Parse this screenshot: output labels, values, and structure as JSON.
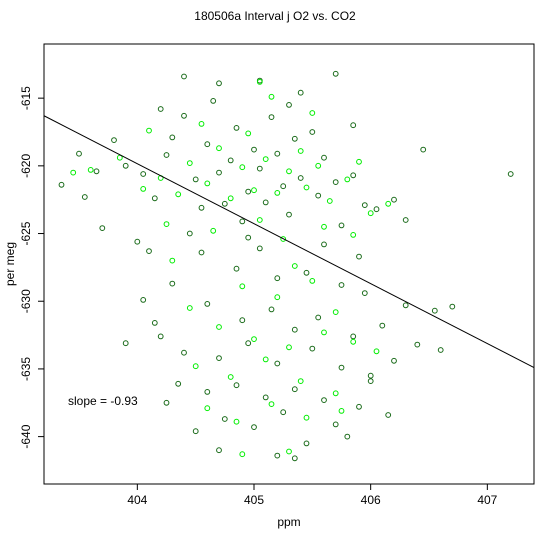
{
  "chart_data": {
    "type": "scatter",
    "title": "180506a   Interval j O2 vs. CO2",
    "xlabel": "ppm",
    "ylabel": "per meg",
    "xlim": [
      403.2,
      407.4
    ],
    "ylim": [
      -643.5,
      -611.0
    ],
    "xticks": [
      404,
      405,
      406,
      407
    ],
    "yticks": [
      -615,
      -620,
      -625,
      -630,
      -635,
      -640
    ],
    "grid": false,
    "legend": "none",
    "annotation": "slope =  -0.93",
    "colors": {
      "series_dark": "#1a6b1a",
      "series_bright": "#00ee00",
      "fit_line": "#000000"
    },
    "series": [
      {
        "marker": "open-circle",
        "color": "#1a6b1a",
        "points": [
          [
            403.35,
            -621.4
          ],
          [
            403.55,
            -622.3
          ],
          [
            403.7,
            -624.6
          ],
          [
            403.8,
            -618.1
          ],
          [
            403.9,
            -620.0
          ],
          [
            404.05,
            -620.6
          ],
          [
            404.15,
            -622.4
          ],
          [
            404.25,
            -619.2
          ],
          [
            404.3,
            -617.9
          ],
          [
            404.4,
            -616.3
          ],
          [
            404.5,
            -621.0
          ],
          [
            404.55,
            -623.1
          ],
          [
            404.6,
            -618.4
          ],
          [
            404.7,
            -620.5
          ],
          [
            404.75,
            -622.8
          ],
          [
            404.8,
            -619.6
          ],
          [
            404.85,
            -617.2
          ],
          [
            404.9,
            -624.1
          ],
          [
            404.95,
            -621.9
          ],
          [
            405.0,
            -618.8
          ],
          [
            405.05,
            -620.2
          ],
          [
            405.1,
            -622.7
          ],
          [
            405.15,
            -616.4
          ],
          [
            405.2,
            -619.1
          ],
          [
            405.25,
            -621.5
          ],
          [
            405.3,
            -623.6
          ],
          [
            405.35,
            -618.0
          ],
          [
            405.4,
            -620.9
          ],
          [
            405.5,
            -617.5
          ],
          [
            405.55,
            -622.2
          ],
          [
            405.6,
            -619.4
          ],
          [
            405.7,
            -621.2
          ],
          [
            405.75,
            -624.4
          ],
          [
            405.85,
            -620.7
          ],
          [
            405.95,
            -622.9
          ],
          [
            406.05,
            -623.2
          ],
          [
            406.2,
            -622.5
          ],
          [
            406.3,
            -624.0
          ],
          [
            406.45,
            -618.8
          ],
          [
            407.2,
            -620.6
          ],
          [
            404.4,
            -613.4
          ],
          [
            404.7,
            -613.9
          ],
          [
            405.05,
            -613.7
          ],
          [
            405.4,
            -614.6
          ],
          [
            405.7,
            -613.2
          ],
          [
            404.2,
            -615.8
          ],
          [
            404.65,
            -615.2
          ],
          [
            405.3,
            -615.5
          ],
          [
            405.85,
            -617.0
          ],
          [
            404.55,
            -626.4
          ],
          [
            404.85,
            -627.6
          ],
          [
            405.2,
            -628.3
          ],
          [
            405.45,
            -627.9
          ],
          [
            405.75,
            -628.8
          ],
          [
            405.95,
            -629.4
          ],
          [
            404.3,
            -628.7
          ],
          [
            404.6,
            -630.2
          ],
          [
            404.9,
            -631.4
          ],
          [
            405.15,
            -630.6
          ],
          [
            405.35,
            -632.1
          ],
          [
            405.55,
            -631.2
          ],
          [
            405.85,
            -632.6
          ],
          [
            406.1,
            -631.8
          ],
          [
            406.3,
            -630.3
          ],
          [
            404.2,
            -632.6
          ],
          [
            404.4,
            -633.8
          ],
          [
            404.7,
            -634.2
          ],
          [
            404.95,
            -633.1
          ],
          [
            405.2,
            -634.6
          ],
          [
            405.5,
            -633.5
          ],
          [
            405.75,
            -634.9
          ],
          [
            406.0,
            -635.5
          ],
          [
            406.4,
            -633.2
          ],
          [
            406.6,
            -633.6
          ],
          [
            404.35,
            -636.1
          ],
          [
            404.6,
            -636.7
          ],
          [
            404.85,
            -636.2
          ],
          [
            405.1,
            -637.1
          ],
          [
            405.35,
            -636.5
          ],
          [
            405.6,
            -637.3
          ],
          [
            405.9,
            -637.8
          ],
          [
            406.15,
            -638.4
          ],
          [
            404.75,
            -638.7
          ],
          [
            405.0,
            -639.3
          ],
          [
            405.25,
            -638.2
          ],
          [
            405.45,
            -640.5
          ],
          [
            405.7,
            -639.1
          ],
          [
            404.7,
            -641.0
          ],
          [
            405.2,
            -641.4
          ],
          [
            405.35,
            -641.6
          ],
          [
            403.5,
            -619.1
          ],
          [
            403.65,
            -620.4
          ],
          [
            404.0,
            -625.6
          ],
          [
            404.1,
            -626.3
          ],
          [
            404.45,
            -625.0
          ],
          [
            404.95,
            -625.3
          ],
          [
            405.05,
            -626.1
          ],
          [
            405.6,
            -625.8
          ],
          [
            405.9,
            -626.7
          ],
          [
            406.55,
            -630.7
          ],
          [
            406.7,
            -630.4
          ],
          [
            404.05,
            -629.9
          ],
          [
            404.15,
            -631.6
          ],
          [
            403.9,
            -633.1
          ],
          [
            404.25,
            -637.5
          ],
          [
            404.5,
            -639.6
          ],
          [
            405.8,
            -640.0
          ],
          [
            406.0,
            -635.9
          ],
          [
            406.2,
            -634.4
          ]
        ]
      },
      {
        "marker": "open-circle",
        "color": "#00ee00",
        "points": [
          [
            403.6,
            -620.3
          ],
          [
            403.85,
            -619.4
          ],
          [
            404.05,
            -621.7
          ],
          [
            404.2,
            -620.9
          ],
          [
            404.35,
            -622.1
          ],
          [
            404.45,
            -619.8
          ],
          [
            404.6,
            -621.3
          ],
          [
            404.7,
            -618.7
          ],
          [
            404.8,
            -622.4
          ],
          [
            404.9,
            -620.1
          ],
          [
            405.0,
            -621.8
          ],
          [
            405.1,
            -619.5
          ],
          [
            405.2,
            -622.0
          ],
          [
            405.3,
            -620.4
          ],
          [
            405.4,
            -618.9
          ],
          [
            405.45,
            -621.6
          ],
          [
            405.55,
            -620.0
          ],
          [
            405.65,
            -622.6
          ],
          [
            405.8,
            -621.0
          ],
          [
            405.9,
            -619.7
          ],
          [
            406.0,
            -623.5
          ],
          [
            404.55,
            -616.9
          ],
          [
            404.95,
            -617.6
          ],
          [
            405.15,
            -614.9
          ],
          [
            405.5,
            -616.1
          ],
          [
            404.1,
            -617.4
          ],
          [
            404.25,
            -624.3
          ],
          [
            404.65,
            -624.8
          ],
          [
            405.05,
            -624.0
          ],
          [
            405.25,
            -625.4
          ],
          [
            405.6,
            -624.5
          ],
          [
            405.85,
            -625.1
          ],
          [
            404.9,
            -628.9
          ],
          [
            405.2,
            -629.7
          ],
          [
            405.5,
            -628.5
          ],
          [
            405.7,
            -630.8
          ],
          [
            404.45,
            -630.5
          ],
          [
            404.7,
            -631.9
          ],
          [
            405.0,
            -632.8
          ],
          [
            405.3,
            -633.4
          ],
          [
            405.6,
            -632.3
          ],
          [
            405.85,
            -633.0
          ],
          [
            406.05,
            -633.7
          ],
          [
            404.5,
            -634.8
          ],
          [
            404.8,
            -635.6
          ],
          [
            405.1,
            -634.3
          ],
          [
            405.4,
            -635.9
          ],
          [
            405.7,
            -636.8
          ],
          [
            404.6,
            -637.9
          ],
          [
            404.85,
            -638.9
          ],
          [
            405.15,
            -637.6
          ],
          [
            405.45,
            -638.6
          ],
          [
            405.75,
            -638.1
          ],
          [
            404.9,
            -641.3
          ],
          [
            405.3,
            -641.1
          ],
          [
            403.45,
            -620.5
          ],
          [
            404.3,
            -627.0
          ],
          [
            405.35,
            -627.4
          ],
          [
            406.15,
            -622.8
          ],
          [
            405.05,
            -613.8
          ]
        ]
      },
      {
        "type": "line",
        "name": "",
        "color": "#000000",
        "slope": -0.93,
        "endpoints": [
          [
            403.2,
            -616.3
          ],
          [
            407.4,
            -634.9
          ]
        ]
      }
    ]
  }
}
